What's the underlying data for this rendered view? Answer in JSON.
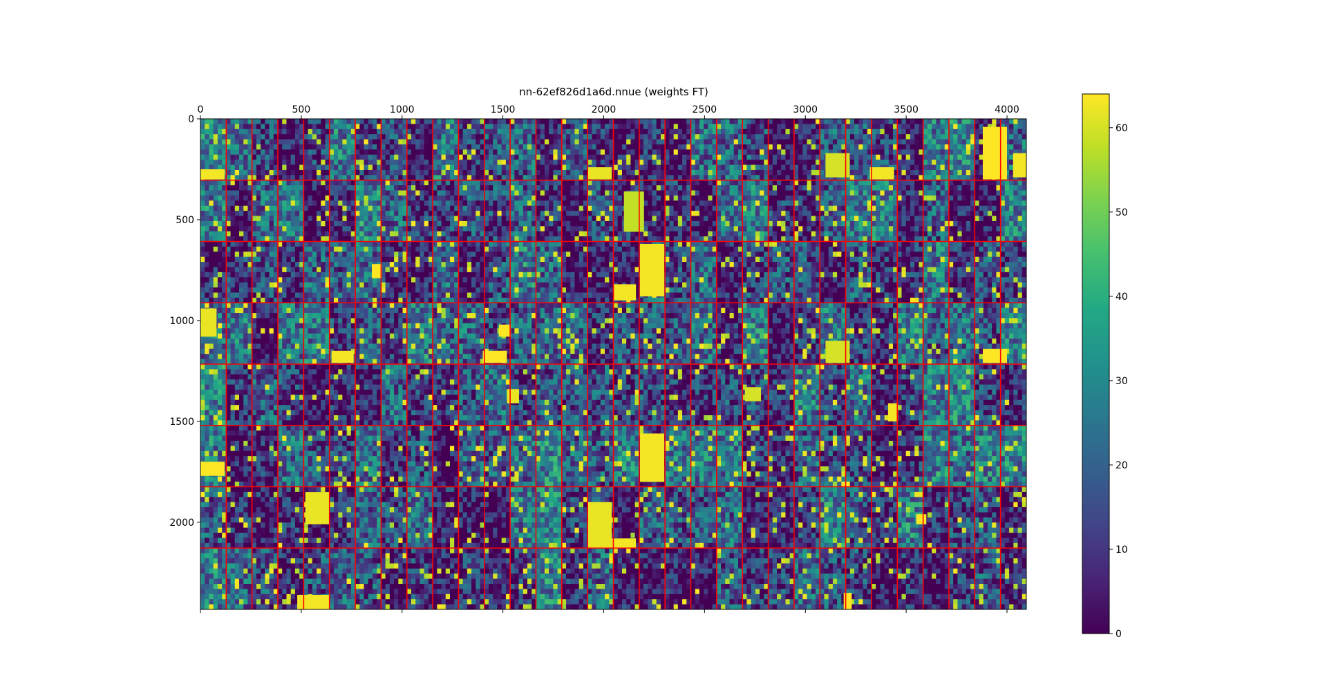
{
  "chart_data": {
    "type": "heatmap",
    "title": "nn-62ef826d1a6d.nnue (weights FT)",
    "xlabel": "",
    "ylabel": "",
    "xlim": [
      0,
      4096
    ],
    "ylim": [
      2432,
      0
    ],
    "x_ticks": [
      {
        "value": 0,
        "label": "0"
      },
      {
        "value": 500,
        "label": "500"
      },
      {
        "value": 1000,
        "label": "1000"
      },
      {
        "value": 1500,
        "label": "1500"
      },
      {
        "value": 2000,
        "label": "2000"
      },
      {
        "value": 2500,
        "label": "2500"
      },
      {
        "value": 3000,
        "label": "3000"
      },
      {
        "value": 3500,
        "label": "3500"
      },
      {
        "value": 4000,
        "label": "4000"
      }
    ],
    "y_ticks": [
      {
        "value": 0,
        "label": "0"
      },
      {
        "value": 500,
        "label": "500"
      },
      {
        "value": 1000,
        "label": "1000"
      },
      {
        "value": 1500,
        "label": "1500"
      },
      {
        "value": 2000,
        "label": "2000"
      }
    ],
    "x_tick_position": "top",
    "grid_blocks": {
      "columns": 32,
      "rows": 8,
      "block_width": 128,
      "block_height": 304,
      "line_color": "#ff0000"
    },
    "colormap": "viridis",
    "colorbar": {
      "range": [
        0,
        64
      ],
      "ticks": [
        {
          "value": 0,
          "label": "0"
        },
        {
          "value": 10,
          "label": "10"
        },
        {
          "value": 20,
          "label": "20"
        },
        {
          "value": 30,
          "label": "30"
        },
        {
          "value": 40,
          "label": "40"
        },
        {
          "value": 50,
          "label": "50"
        },
        {
          "value": 60,
          "label": "60"
        }
      ]
    },
    "bright_regions": [
      {
        "x": [
          0,
          120
        ],
        "y": [
          250,
          300
        ],
        "value": 63
      },
      {
        "x": [
          1920,
          2040
        ],
        "y": [
          240,
          300
        ],
        "value": 62
      },
      {
        "x": [
          3880,
          4000
        ],
        "y": [
          40,
          300
        ],
        "value": 64
      },
      {
        "x": [
          4030,
          4096
        ],
        "y": [
          170,
          290
        ],
        "value": 63
      },
      {
        "x": [
          3100,
          3220
        ],
        "y": [
          170,
          290
        ],
        "value": 60
      },
      {
        "x": [
          3320,
          3440
        ],
        "y": [
          240,
          300
        ],
        "value": 63
      },
      {
        "x": [
          2100,
          2200
        ],
        "y": [
          360,
          560
        ],
        "value": 58
      },
      {
        "x": [
          2180,
          2300
        ],
        "y": [
          620,
          880
        ],
        "value": 63
      },
      {
        "x": [
          2050,
          2160
        ],
        "y": [
          820,
          900
        ],
        "value": 63
      },
      {
        "x": [
          850,
          900
        ],
        "y": [
          720,
          790
        ],
        "value": 64
      },
      {
        "x": [
          0,
          80
        ],
        "y": [
          940,
          1080
        ],
        "value": 62
      },
      {
        "x": [
          650,
          760
        ],
        "y": [
          1150,
          1210
        ],
        "value": 63
      },
      {
        "x": [
          1400,
          1520
        ],
        "y": [
          1150,
          1210
        ],
        "value": 64
      },
      {
        "x": [
          1480,
          1540
        ],
        "y": [
          1020,
          1080
        ],
        "value": 64
      },
      {
        "x": [
          3880,
          4000
        ],
        "y": [
          1140,
          1210
        ],
        "value": 64
      },
      {
        "x": [
          3100,
          3220
        ],
        "y": [
          1100,
          1210
        ],
        "value": 60
      },
      {
        "x": [
          0,
          120
        ],
        "y": [
          1700,
          1770
        ],
        "value": 64
      },
      {
        "x": [
          2180,
          2300
        ],
        "y": [
          1560,
          1800
        ],
        "value": 63
      },
      {
        "x": [
          1920,
          2040
        ],
        "y": [
          1900,
          2130
        ],
        "value": 62
      },
      {
        "x": [
          2040,
          2160
        ],
        "y": [
          2080,
          2130
        ],
        "value": 63
      },
      {
        "x": [
          520,
          640
        ],
        "y": [
          1850,
          2010
        ],
        "value": 62
      },
      {
        "x": [
          3550,
          3600
        ],
        "y": [
          1960,
          2010
        ],
        "value": 64
      },
      {
        "x": [
          480,
          640
        ],
        "y": [
          2360,
          2432
        ],
        "value": 63
      },
      {
        "x": [
          3190,
          3230
        ],
        "y": [
          2350,
          2432
        ],
        "value": 64
      },
      {
        "x": [
          3410,
          3460
        ],
        "y": [
          1410,
          1500
        ],
        "value": 63
      },
      {
        "x": [
          1520,
          1580
        ],
        "y": [
          1340,
          1410
        ],
        "value": 62
      },
      {
        "x": [
          2700,
          2780
        ],
        "y": [
          1330,
          1400
        ],
        "value": 60
      }
    ]
  }
}
